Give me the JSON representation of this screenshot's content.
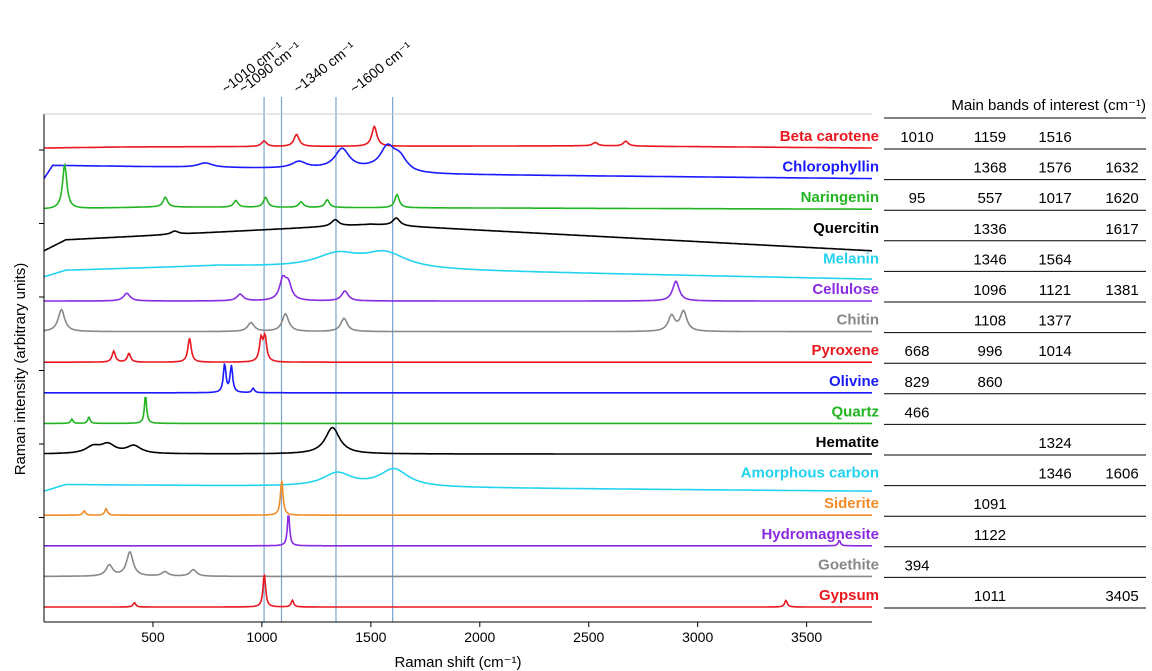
{
  "chart_data": {
    "type": "line",
    "xlabel": "Raman shift (cm⁻¹)",
    "ylabel": "Raman intensity (arbitrary units)",
    "xlim": [
      0,
      3800
    ],
    "xticks": [
      500,
      1000,
      1500,
      2000,
      2500,
      3000,
      3500
    ],
    "table_header": "Main bands of interest (cm⁻¹)",
    "reference_lines": [
      {
        "x": 1010,
        "label": "~1010 cm⁻¹"
      },
      {
        "x": 1090,
        "label": "~1090 cm⁻¹"
      },
      {
        "x": 1340,
        "label": "~1340 cm⁻¹"
      },
      {
        "x": 1600,
        "label": "~1600 cm⁻¹"
      }
    ],
    "series": [
      {
        "name": "Beta carotene",
        "color": "#e8181e",
        "bands": [
          "1010",
          "1159",
          "1516",
          ""
        ],
        "peaks": [
          [
            1010,
            0.25
          ],
          [
            1159,
            0.55
          ],
          [
            1516,
            0.9
          ],
          [
            2530,
            0.15
          ],
          [
            2670,
            0.22
          ]
        ],
        "baseline": [
          [
            0,
            0.0
          ],
          [
            400,
            0.05
          ],
          [
            2500,
            0.1
          ],
          [
            3800,
            0.0
          ]
        ],
        "width": 14
      },
      {
        "name": "Chlorophyllin",
        "color": "#1a1aff",
        "bands": [
          "",
          "1368",
          "1576",
          "1632"
        ],
        "peaks": [
          [
            1368,
            0.9
          ],
          [
            1576,
            1.0
          ],
          [
            1632,
            0.6
          ],
          [
            1170,
            0.3
          ],
          [
            740,
            0.2
          ]
        ],
        "baseline": [
          [
            0,
            0.0
          ],
          [
            40,
            0.6
          ],
          [
            1500,
            0.4
          ],
          [
            1700,
            0.2
          ],
          [
            3800,
            0.0
          ]
        ],
        "width": 40
      },
      {
        "name": "Naringenin",
        "color": "#22b522",
        "bands": [
          "95",
          "557",
          "1017",
          "1620"
        ],
        "peaks": [
          [
            95,
            2.0
          ],
          [
            557,
            0.45
          ],
          [
            1017,
            0.45
          ],
          [
            1620,
            0.6
          ],
          [
            880,
            0.3
          ],
          [
            1300,
            0.35
          ],
          [
            1180,
            0.25
          ]
        ],
        "baseline": [
          [
            0,
            0.0
          ],
          [
            500,
            0.1
          ],
          [
            3800,
            0.0
          ]
        ],
        "width": 12
      },
      {
        "name": "Quercitin",
        "color": "#000000",
        "bands": [
          "",
          "1336",
          "",
          "1617"
        ],
        "peaks": [
          [
            1336,
            0.3
          ],
          [
            1617,
            0.35
          ],
          [
            600,
            0.15
          ]
        ],
        "baseline": [
          [
            0,
            -0.5
          ],
          [
            100,
            0.0
          ],
          [
            1500,
            0.7
          ],
          [
            3800,
            -0.5
          ]
        ],
        "width": 20
      },
      {
        "name": "Melanin",
        "color": "#22d3f0",
        "bands": [
          "",
          "1346",
          "1564",
          ""
        ],
        "peaks": [
          [
            1346,
            0.6
          ],
          [
            1564,
            0.7
          ]
        ],
        "baseline": [
          [
            0,
            -0.3
          ],
          [
            100,
            0.0
          ],
          [
            800,
            0.2
          ],
          [
            3800,
            -0.4
          ]
        ],
        "width": 120
      },
      {
        "name": "Cellulose",
        "color": "#8a2be2",
        "bands": [
          "",
          "1096",
          "1121",
          "1381"
        ],
        "peaks": [
          [
            1096,
            0.9
          ],
          [
            1121,
            0.7
          ],
          [
            1381,
            0.45
          ],
          [
            2900,
            0.9
          ],
          [
            380,
            0.35
          ],
          [
            900,
            0.3
          ]
        ],
        "baseline": [
          [
            0,
            0.0
          ],
          [
            3800,
            0.0
          ]
        ],
        "width": 18
      },
      {
        "name": "Chitin",
        "color": "#888888",
        "bands": [
          "",
          "1108",
          "1377",
          ""
        ],
        "peaks": [
          [
            1108,
            0.8
          ],
          [
            1377,
            0.6
          ],
          [
            2880,
            0.7
          ],
          [
            2935,
            0.9
          ],
          [
            80,
            1.0
          ],
          [
            950,
            0.4
          ]
        ],
        "baseline": [
          [
            0,
            0.0
          ],
          [
            3800,
            0.0
          ]
        ],
        "width": 18
      },
      {
        "name": "Pyroxene",
        "color": "#e8181e",
        "bands": [
          "668",
          "996",
          "1014",
          ""
        ],
        "peaks": [
          [
            668,
            1.1
          ],
          [
            996,
            1.0
          ],
          [
            1014,
            1.1
          ],
          [
            320,
            0.5
          ],
          [
            390,
            0.4
          ]
        ],
        "baseline": [
          [
            0,
            0.0
          ],
          [
            3800,
            0.0
          ]
        ],
        "width": 9
      },
      {
        "name": "Olivine",
        "color": "#1a1aff",
        "bands": [
          "829",
          "860",
          "",
          ""
        ],
        "peaks": [
          [
            829,
            1.3
          ],
          [
            860,
            1.2
          ],
          [
            960,
            0.2
          ]
        ],
        "baseline": [
          [
            0,
            0.0
          ],
          [
            3800,
            0.0
          ]
        ],
        "width": 7
      },
      {
        "name": "Quartz",
        "color": "#22b522",
        "bands": [
          "466",
          "",
          "",
          ""
        ],
        "peaks": [
          [
            466,
            1.3
          ],
          [
            206,
            0.3
          ],
          [
            128,
            0.2
          ]
        ],
        "baseline": [
          [
            0,
            0.0
          ],
          [
            3800,
            0.0
          ]
        ],
        "width": 6
      },
      {
        "name": "Hematite",
        "color": "#000000",
        "bands": [
          "",
          "",
          "1324",
          ""
        ],
        "peaks": [
          [
            1324,
            1.2
          ],
          [
            225,
            0.3
          ],
          [
            293,
            0.4
          ],
          [
            412,
            0.35
          ]
        ],
        "baseline": [
          [
            0,
            0.0
          ],
          [
            3800,
            0.0
          ]
        ],
        "width": 40
      },
      {
        "name": "Amorphous carbon",
        "color": "#22d3f0",
        "bands": [
          "",
          "",
          "1346",
          "1606"
        ],
        "peaks": [
          [
            1346,
            0.6
          ],
          [
            1606,
            0.8
          ]
        ],
        "baseline": [
          [
            0,
            -0.3
          ],
          [
            100,
            0.0
          ],
          [
            3800,
            -0.3
          ]
        ],
        "width": 80
      },
      {
        "name": "Siderite",
        "color": "#f28c28",
        "bands": [
          "",
          "1091",
          "",
          ""
        ],
        "peaks": [
          [
            1091,
            1.6
          ],
          [
            185,
            0.2
          ],
          [
            285,
            0.3
          ]
        ],
        "baseline": [
          [
            0,
            0.0
          ],
          [
            3800,
            0.0
          ]
        ],
        "width": 7
      },
      {
        "name": "Hydromagnesite",
        "color": "#8a2be2",
        "bands": [
          "",
          "1122",
          "",
          ""
        ],
        "peaks": [
          [
            1122,
            1.5
          ],
          [
            3650,
            0.25
          ]
        ],
        "baseline": [
          [
            0,
            0.0
          ],
          [
            3800,
            0.0
          ]
        ],
        "width": 6
      },
      {
        "name": "Goethite",
        "color": "#888888",
        "bands": [
          "394",
          "",
          "",
          ""
        ],
        "peaks": [
          [
            394,
            1.1
          ],
          [
            300,
            0.5
          ],
          [
            555,
            0.2
          ],
          [
            685,
            0.3
          ]
        ],
        "baseline": [
          [
            0,
            0.0
          ],
          [
            3800,
            0.0
          ]
        ],
        "width": 18
      },
      {
        "name": "Gypsum",
        "color": "#e8181e",
        "bands": [
          "",
          "1011",
          "",
          "3405"
        ],
        "peaks": [
          [
            1011,
            1.5
          ],
          [
            415,
            0.2
          ],
          [
            1140,
            0.3
          ],
          [
            3405,
            0.3
          ]
        ],
        "baseline": [
          [
            0,
            0.0
          ],
          [
            3800,
            0.0
          ]
        ],
        "width": 7
      }
    ]
  }
}
